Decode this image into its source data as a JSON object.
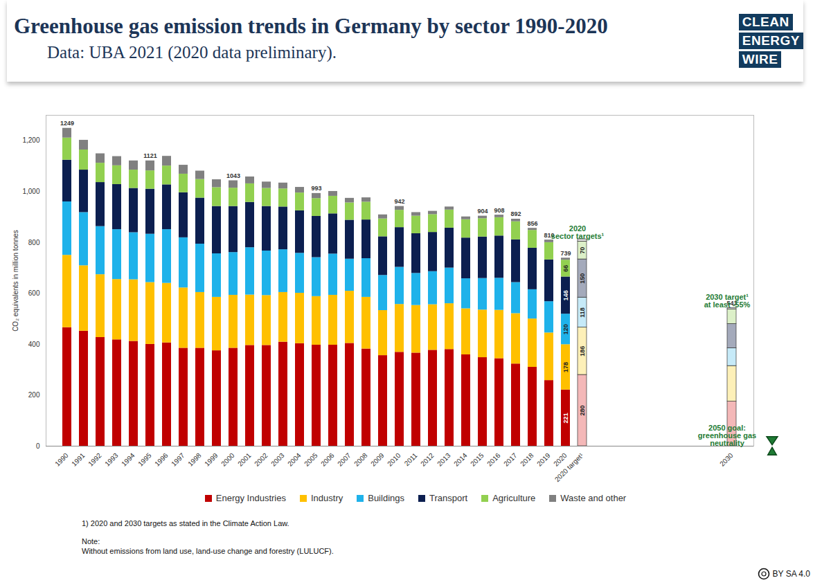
{
  "chart_data": {
    "type": "bar",
    "title": "Greenhouse gas emission trends in Germany by sector 1990-2020",
    "subtitle": "Data: UBA 2021 (2020 data preliminary).",
    "logo": [
      "CLEAN",
      "ENERGY",
      "WIRE"
    ],
    "y_label": "CO₂ equivalents in million tonnes",
    "categories": [
      "1990",
      "1991",
      "1992",
      "1993",
      "1994",
      "1995",
      "1996",
      "1997",
      "1998",
      "1999",
      "2000",
      "2001",
      "2002",
      "2003",
      "2004",
      "2005",
      "2006",
      "2007",
      "2008",
      "2009",
      "2010",
      "2011",
      "2012",
      "2013",
      "2014",
      "2015",
      "2016",
      "2017",
      "2018",
      "2019",
      "2020",
      "2020 target¹",
      null,
      null,
      null,
      null,
      null,
      null,
      null,
      null,
      "2030"
    ],
    "series": [
      {
        "name": "Energy Industries",
        "color": "#c00000",
        "colors": [
          "#c00000",
          "#c00000",
          "#c00000",
          "#c00000",
          "#c00000",
          "#c00000",
          "#c00000",
          "#c00000",
          "#c00000",
          "#c00000",
          "#c00000",
          "#c00000",
          "#c00000",
          "#c00000",
          "#c00000",
          "#c00000",
          "#c00000",
          "#c00000",
          "#c00000",
          "#c00000",
          "#c00000",
          "#c00000",
          "#c00000",
          "#c00000",
          "#c00000",
          "#c00000",
          "#c00000",
          "#c00000",
          "#c00000",
          "#c00000",
          "#c00000",
          "#f4b8b8",
          null,
          null,
          null,
          null,
          null,
          null,
          null,
          null,
          "#f4b8b8"
        ],
        "values": [
          466,
          452,
          427,
          418,
          412,
          400,
          406,
          385,
          385,
          375,
          385,
          396,
          396,
          409,
          403,
          397,
          397,
          404,
          382,
          356,
          369,
          366,
          377,
          380,
          359,
          348,
          344,
          323,
          310,
          258,
          221,
          280,
          null,
          null,
          null,
          null,
          null,
          null,
          null,
          null,
          175
        ],
        "value_labels": [
          null,
          null,
          null,
          null,
          null,
          null,
          null,
          null,
          null,
          null,
          null,
          null,
          null,
          null,
          null,
          null,
          null,
          null,
          null,
          null,
          null,
          null,
          null,
          null,
          null,
          null,
          null,
          null,
          null,
          null,
          "221",
          "280",
          null,
          null,
          null,
          null,
          null,
          null,
          null,
          null,
          null
        ]
      },
      {
        "name": "Industry",
        "color": "#ffc000",
        "colors": [
          "#ffc000",
          "#ffc000",
          "#ffc000",
          "#ffc000",
          "#ffc000",
          "#ffc000",
          "#ffc000",
          "#ffc000",
          "#ffc000",
          "#ffc000",
          "#ffc000",
          "#ffc000",
          "#ffc000",
          "#ffc000",
          "#ffc000",
          "#ffc000",
          "#ffc000",
          "#ffc000",
          "#ffc000",
          "#ffc000",
          "#ffc000",
          "#ffc000",
          "#ffc000",
          "#ffc000",
          "#ffc000",
          "#ffc000",
          "#ffc000",
          "#ffc000",
          "#ffc000",
          "#ffc000",
          "#ffc000",
          "#fdf0b8",
          null,
          null,
          null,
          null,
          null,
          null,
          null,
          null,
          "#fdf0b8"
        ],
        "values": [
          284,
          257,
          247,
          237,
          242,
          243,
          234,
          237,
          219,
          210,
          208,
          198,
          196,
          195,
          198,
          191,
          196,
          205,
          203,
          177,
          188,
          187,
          179,
          180,
          181,
          187,
          190,
          198,
          190,
          187,
          178,
          186,
          null,
          null,
          null,
          null,
          null,
          null,
          null,
          null,
          140
        ],
        "value_labels": [
          null,
          null,
          null,
          null,
          null,
          null,
          null,
          null,
          null,
          null,
          null,
          null,
          null,
          null,
          null,
          null,
          null,
          null,
          null,
          null,
          null,
          null,
          null,
          null,
          null,
          null,
          null,
          null,
          null,
          null,
          "178",
          "186",
          null,
          null,
          null,
          null,
          null,
          null,
          null,
          null,
          null
        ]
      },
      {
        "name": "Buildings",
        "color": "#1fb2ea",
        "colors": [
          "#1fb2ea",
          "#1fb2ea",
          "#1fb2ea",
          "#1fb2ea",
          "#1fb2ea",
          "#1fb2ea",
          "#1fb2ea",
          "#1fb2ea",
          "#1fb2ea",
          "#1fb2ea",
          "#1fb2ea",
          "#1fb2ea",
          "#1fb2ea",
          "#1fb2ea",
          "#1fb2ea",
          "#1fb2ea",
          "#1fb2ea",
          "#1fb2ea",
          "#1fb2ea",
          "#1fb2ea",
          "#1fb2ea",
          "#1fb2ea",
          "#1fb2ea",
          "#1fb2ea",
          "#1fb2ea",
          "#1fb2ea",
          "#1fb2ea",
          "#1fb2ea",
          "#1fb2ea",
          "#1fb2ea",
          "#1fb2ea",
          "#c6eaf8",
          null,
          null,
          null,
          null,
          null,
          null,
          null,
          null,
          "#c6eaf8"
        ],
        "values": [
          210,
          209,
          189,
          196,
          185,
          190,
          211,
          197,
          190,
          171,
          168,
          186,
          175,
          168,
          157,
          153,
          162,
          126,
          152,
          138,
          146,
          126,
          130,
          140,
          118,
          124,
          126,
          122,
          115,
          123,
          120,
          118,
          null,
          null,
          null,
          null,
          null,
          null,
          null,
          null,
          70
        ],
        "value_labels": [
          null,
          null,
          null,
          null,
          null,
          null,
          null,
          null,
          null,
          null,
          null,
          null,
          null,
          null,
          null,
          null,
          null,
          null,
          null,
          null,
          null,
          null,
          null,
          null,
          null,
          null,
          null,
          null,
          null,
          null,
          "120",
          "118",
          null,
          null,
          null,
          null,
          null,
          null,
          null,
          null,
          null
        ]
      },
      {
        "name": "Transport",
        "color": "#0c1f50",
        "colors": [
          "#0c1f50",
          "#0c1f50",
          "#0c1f50",
          "#0c1f50",
          "#0c1f50",
          "#0c1f50",
          "#0c1f50",
          "#0c1f50",
          "#0c1f50",
          "#0c1f50",
          "#0c1f50",
          "#0c1f50",
          "#0c1f50",
          "#0c1f50",
          "#0c1f50",
          "#0c1f50",
          "#0c1f50",
          "#0c1f50",
          "#0c1f50",
          "#0c1f50",
          "#0c1f50",
          "#0c1f50",
          "#0c1f50",
          "#0c1f50",
          "#0c1f50",
          "#0c1f50",
          "#0c1f50",
          "#0c1f50",
          "#0c1f50",
          "#0c1f50",
          "#0c1f50",
          "#a4aabb",
          null,
          null,
          null,
          null,
          null,
          null,
          null,
          null,
          "#a4aabb"
        ],
        "values": [
          164,
          167,
          173,
          177,
          174,
          177,
          176,
          177,
          181,
          186,
          181,
          178,
          175,
          168,
          167,
          162,
          158,
          153,
          152,
          152,
          156,
          156,
          154,
          157,
          160,
          163,
          166,
          168,
          163,
          164,
          146,
          150,
          null,
          null,
          null,
          null,
          null,
          null,
          null,
          null,
          95
        ],
        "value_labels": [
          null,
          null,
          null,
          null,
          null,
          null,
          null,
          null,
          null,
          null,
          null,
          null,
          null,
          null,
          null,
          null,
          null,
          null,
          null,
          null,
          null,
          null,
          null,
          null,
          null,
          null,
          null,
          null,
          null,
          null,
          "146",
          "150",
          null,
          null,
          null,
          null,
          null,
          null,
          null,
          null,
          null
        ]
      },
      {
        "name": "Agriculture",
        "color": "#92d050",
        "colors": [
          "#92d050",
          "#92d050",
          "#92d050",
          "#92d050",
          "#92d050",
          "#92d050",
          "#92d050",
          "#92d050",
          "#92d050",
          "#92d050",
          "#92d050",
          "#92d050",
          "#92d050",
          "#92d050",
          "#92d050",
          "#92d050",
          "#92d050",
          "#92d050",
          "#92d050",
          "#92d050",
          "#92d050",
          "#92d050",
          "#92d050",
          "#92d050",
          "#92d050",
          "#92d050",
          "#92d050",
          "#92d050",
          "#92d050",
          "#92d050",
          "#92d050",
          "#dcf0c8",
          null,
          null,
          null,
          null,
          null,
          null,
          null,
          null,
          "#dcf0c8"
        ],
        "values": [
          87,
          79,
          76,
          74,
          72,
          72,
          74,
          73,
          73,
          74,
          72,
          73,
          71,
          71,
          70,
          70,
          69,
          68,
          70,
          70,
          68,
          69,
          70,
          71,
          72,
          72,
          72,
          71,
          70,
          68,
          66,
          70,
          null,
          null,
          null,
          null,
          null,
          null,
          null,
          null,
          58
        ],
        "value_labels": [
          null,
          null,
          null,
          null,
          null,
          null,
          null,
          null,
          null,
          null,
          null,
          null,
          null,
          null,
          null,
          null,
          null,
          null,
          null,
          null,
          null,
          null,
          null,
          null,
          null,
          null,
          null,
          null,
          null,
          null,
          "66",
          "70",
          null,
          null,
          null,
          null,
          null,
          null,
          null,
          null,
          null
        ]
      },
      {
        "name": "Waste and other",
        "color": "#808080",
        "colors": [
          "#808080",
          "#808080",
          "#808080",
          "#808080",
          "#808080",
          "#808080",
          "#808080",
          "#808080",
          "#808080",
          "#808080",
          "#808080",
          "#808080",
          "#808080",
          "#808080",
          "#808080",
          "#808080",
          "#808080",
          "#808080",
          "#808080",
          "#808080",
          "#808080",
          "#808080",
          "#808080",
          "#808080",
          "#808080",
          "#808080",
          "#808080",
          "#808080",
          "#808080",
          "#808080",
          "#808080",
          "#e2e2e2",
          null,
          null,
          null,
          null,
          null,
          null,
          null,
          null,
          "#e2e2e2"
        ],
        "values": [
          38,
          38,
          37,
          36,
          36,
          39,
          38,
          35,
          33,
          31,
          29,
          27,
          25,
          23,
          22,
          20,
          19,
          18,
          17,
          16,
          15,
          14,
          13,
          12,
          11,
          10,
          10,
          10,
          8,
          10,
          8,
          9,
          null,
          null,
          null,
          null,
          null,
          null,
          null,
          null,
          5
        ]
      }
    ],
    "total_labels": [
      1249,
      null,
      null,
      null,
      null,
      1121,
      null,
      null,
      null,
      null,
      1043,
      null,
      null,
      null,
      null,
      993,
      null,
      null,
      null,
      null,
      942,
      null,
      null,
      null,
      null,
      904,
      908,
      892,
      856,
      810,
      739,
      null,
      null,
      null,
      null,
      null,
      null,
      null,
      null,
      null,
      543
    ],
    "annotations": [
      {
        "text": "2020\nsector targets¹",
        "category": "2020 target¹"
      },
      {
        "text": "2030 target¹\nat least -55%",
        "category": "2030"
      },
      {
        "text": "2050 goal:\ngreenhouse gas\nneutrality"
      }
    ],
    "ylim": [
      0,
      1300
    ],
    "yticks": [
      0,
      200,
      400,
      600,
      800,
      1000,
      1200
    ],
    "grid": false,
    "stacked": true,
    "data_labels": true,
    "legend": "bottom",
    "footnote": "1) 2020 and 2030 targets as stated in the Climate Action Law.",
    "note": "Note:\nWithout emissions from land use, land-use change and forestry (LULUCF).",
    "license": "BY SA 4.0"
  }
}
